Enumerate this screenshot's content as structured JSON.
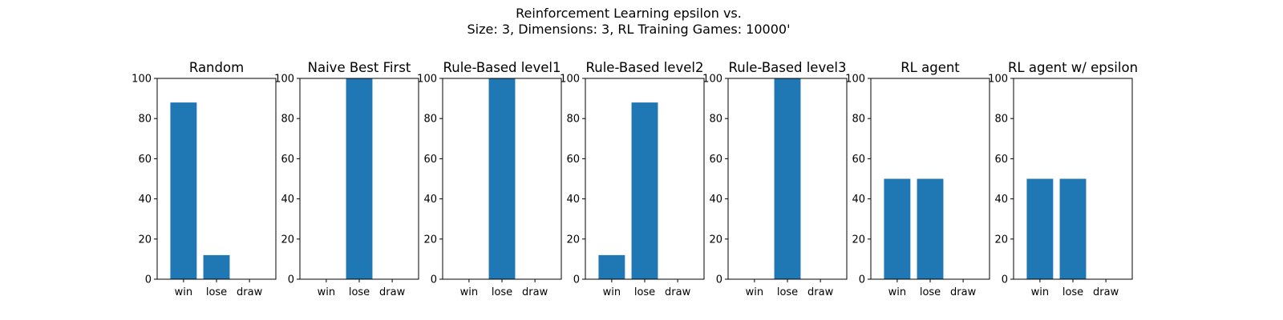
{
  "figure": {
    "title_line1": "Reinforcement Learning epsilon vs.",
    "title_line2": "Size: 3, Dimensions: 3, RL Training Games: 10000'"
  },
  "chart_data": [
    {
      "type": "bar",
      "title": "Random",
      "categories": [
        "win",
        "lose",
        "draw"
      ],
      "values": [
        88,
        12,
        0
      ],
      "ylim": [
        0,
        100
      ],
      "yticks": [
        0,
        20,
        40,
        60,
        80,
        100
      ],
      "color": "#1f77b4"
    },
    {
      "type": "bar",
      "title": "Naive Best First",
      "categories": [
        "win",
        "lose",
        "draw"
      ],
      "values": [
        0,
        100,
        0
      ],
      "ylim": [
        0,
        100
      ],
      "yticks": [
        0,
        20,
        40,
        60,
        80,
        100
      ],
      "color": "#1f77b4"
    },
    {
      "type": "bar",
      "title": "Rule-Based level1",
      "categories": [
        "win",
        "lose",
        "draw"
      ],
      "values": [
        0,
        100,
        0
      ],
      "ylim": [
        0,
        100
      ],
      "yticks": [
        0,
        20,
        40,
        60,
        80,
        100
      ],
      "color": "#1f77b4"
    },
    {
      "type": "bar",
      "title": "Rule-Based level2",
      "categories": [
        "win",
        "lose",
        "draw"
      ],
      "values": [
        12,
        88,
        0
      ],
      "ylim": [
        0,
        100
      ],
      "yticks": [
        0,
        20,
        40,
        60,
        80,
        100
      ],
      "color": "#1f77b4"
    },
    {
      "type": "bar",
      "title": "Rule-Based level3",
      "categories": [
        "win",
        "lose",
        "draw"
      ],
      "values": [
        0,
        100,
        0
      ],
      "ylim": [
        0,
        100
      ],
      "yticks": [
        0,
        20,
        40,
        60,
        80,
        100
      ],
      "color": "#1f77b4"
    },
    {
      "type": "bar",
      "title": "RL agent",
      "categories": [
        "win",
        "lose",
        "draw"
      ],
      "values": [
        50,
        50,
        0
      ],
      "ylim": [
        0,
        100
      ],
      "yticks": [
        0,
        20,
        40,
        60,
        80,
        100
      ],
      "color": "#1f77b4"
    },
    {
      "type": "bar",
      "title": "RL agent w/ epsilon",
      "categories": [
        "win",
        "lose",
        "draw"
      ],
      "values": [
        50,
        50,
        0
      ],
      "ylim": [
        0,
        100
      ],
      "yticks": [
        0,
        20,
        40,
        60,
        80,
        100
      ],
      "color": "#1f77b4"
    }
  ]
}
